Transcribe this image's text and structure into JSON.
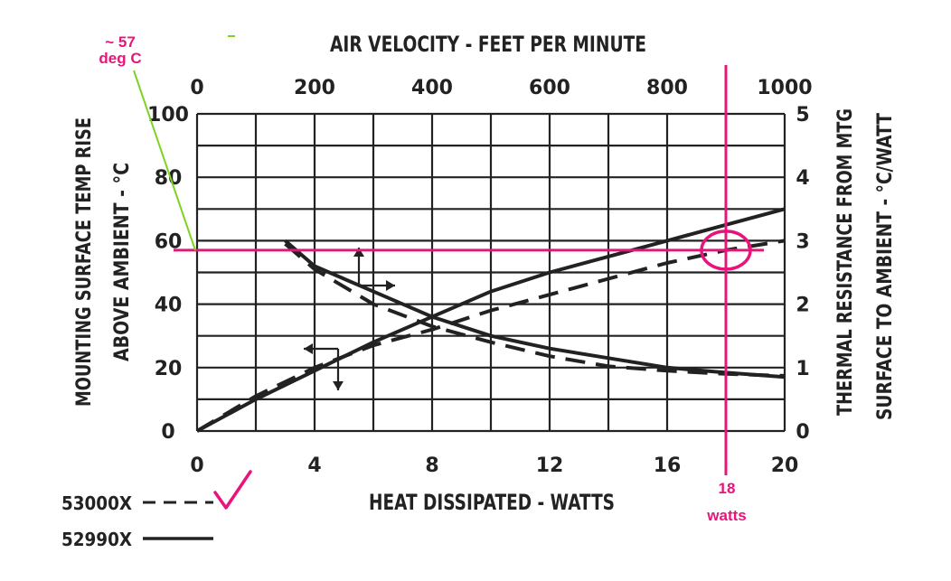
{
  "chart_data": {
    "type": "line",
    "title": "",
    "top_axis": {
      "label": "AIR VELOCITY - FEET PER MINUTE",
      "range": [
        0,
        1000
      ],
      "ticks": [
        "0",
        "200",
        "400",
        "600",
        "800",
        "1000"
      ]
    },
    "bottom_axis": {
      "label": "HEAT DISSIPATED - WATTS",
      "range": [
        0,
        20
      ],
      "ticks": [
        "0",
        "4",
        "8",
        "12",
        "16",
        "20"
      ]
    },
    "left_axis": {
      "label_line1": "MOUNTING SURFACE TEMP RISE",
      "label_line2": "ABOVE AMBIENT - °C",
      "range": [
        0,
        100
      ],
      "ticks": [
        "0",
        "20",
        "40",
        "60",
        "80",
        "100"
      ]
    },
    "right_axis": {
      "label_line1": "THERMAL RESISTANCE FROM MTG",
      "label_line2": "SURFACE TO AMBIENT - °C/WATT",
      "range": [
        0,
        5
      ],
      "ticks": [
        "0",
        "1",
        "2",
        "3",
        "4",
        "5"
      ]
    },
    "grid": true,
    "series": [
      {
        "name": "53000X",
        "style": "dashed",
        "curves": [
          {
            "role": "temp_rise_vs_watts",
            "x": [
              0,
              2,
              4,
              6,
              8,
              10,
              12,
              14,
              16,
              18,
              20
            ],
            "y": [
              0,
              11,
              20,
              27,
              32,
              38,
              43,
              48,
              53,
              57,
              60
            ]
          },
          {
            "role": "thermal_resistance_vs_velocity",
            "x": [
              150,
              200,
              300,
              400,
              500,
              600,
              700,
              800,
              900,
              1000
            ],
            "y": [
              2.95,
              2.55,
              2.0,
              1.65,
              1.4,
              1.18,
              1.02,
              0.95,
              0.9,
              0.87
            ]
          }
        ]
      },
      {
        "name": "52990X",
        "style": "solid",
        "curves": [
          {
            "role": "temp_rise_vs_watts",
            "x": [
              0,
              2,
              4,
              6,
              8,
              10,
              12,
              14,
              16,
              18,
              20
            ],
            "y": [
              0,
              10,
              19,
              28,
              36,
              44,
              50,
              55,
              60,
              65,
              70
            ]
          },
          {
            "role": "thermal_resistance_vs_velocity",
            "x": [
              150,
              200,
              300,
              400,
              500,
              600,
              700,
              800,
              900,
              1000
            ],
            "y": [
              3.0,
              2.6,
              2.2,
              1.8,
              1.5,
              1.3,
              1.15,
              1.0,
              0.92,
              0.85
            ]
          }
        ]
      }
    ],
    "annotations": {
      "temp_line_value": 57,
      "temp_label_line1": "~ 57",
      "temp_label_line2": "deg C",
      "watts_line_value": 18,
      "watts_label_line1": "18",
      "watts_label_line2": "watts",
      "accent_color": "#e8147c",
      "pointer_color": "#7ed321"
    }
  }
}
